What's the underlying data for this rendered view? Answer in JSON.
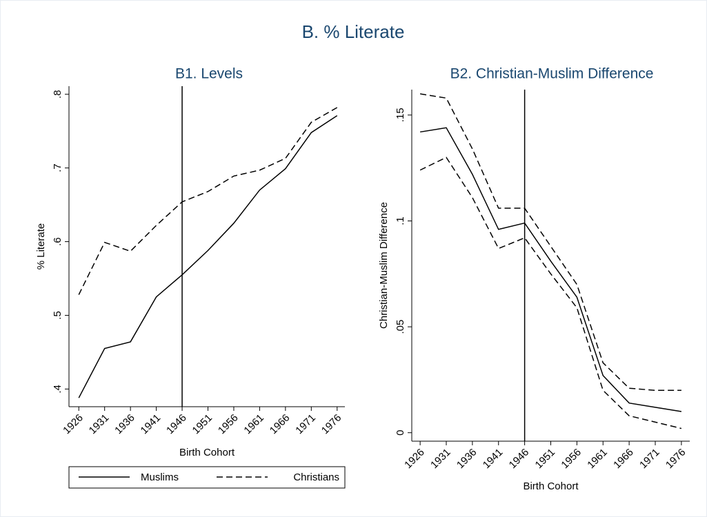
{
  "title": "B. % Literate",
  "chart_data": [
    {
      "type": "line",
      "title": "B1. Levels",
      "xlabel": "Birth Cohort",
      "ylabel": "% Literate",
      "x": [
        1926,
        1931,
        1936,
        1941,
        1946,
        1951,
        1956,
        1961,
        1966,
        1971,
        1976
      ],
      "series": [
        {
          "name": "Muslims",
          "color": "#000000",
          "dash": "solid",
          "values": [
            0.388,
            0.455,
            0.464,
            0.525,
            0.555,
            0.588,
            0.625,
            0.67,
            0.699,
            0.748,
            0.771
          ]
        },
        {
          "name": "Christians",
          "color": "#000000",
          "dash": "dashed",
          "values": [
            0.528,
            0.599,
            0.587,
            0.622,
            0.654,
            0.668,
            0.689,
            0.697,
            0.713,
            0.762,
            0.782
          ]
        }
      ],
      "xlim": [
        1924.1,
        1977.5
      ],
      "xticks": [
        1926,
        1931,
        1936,
        1941,
        1946,
        1951,
        1956,
        1961,
        1966,
        1971,
        1976
      ],
      "ylim": [
        0.376,
        0.811
      ],
      "yticks": [
        {
          "value": 0.4,
          "label": ".4"
        },
        {
          "value": 0.5,
          "label": ".5"
        },
        {
          "value": 0.6,
          "label": ".6"
        },
        {
          "value": 0.7,
          "label": ".7"
        },
        {
          "value": 0.8,
          "label": ".8"
        }
      ],
      "vline": 1946,
      "legend": "bottom",
      "grid": false
    },
    {
      "type": "line",
      "title": "B2. Christian-Muslim Difference",
      "xlabel": "Birth Cohort",
      "ylabel": "Christian-Muslim Difference",
      "x": [
        1926,
        1931,
        1936,
        1941,
        1946,
        1951,
        1956,
        1961,
        1966,
        1971,
        1976
      ],
      "series": [
        {
          "color": "#000000",
          "dash": "solid",
          "values": [
            0.142,
            0.144,
            0.122,
            0.096,
            0.099,
            0.081,
            0.064,
            0.027,
            0.014,
            0.012,
            0.01
          ]
        },
        {
          "color": "#000000",
          "dash": "dashed",
          "values": [
            0.16,
            0.158,
            0.134,
            0.106,
            0.106,
            0.088,
            0.07,
            0.033,
            0.021,
            0.02,
            0.02
          ]
        },
        {
          "color": "#000000",
          "dash": "dashed",
          "values": [
            0.124,
            0.13,
            0.111,
            0.087,
            0.092,
            0.075,
            0.059,
            0.02,
            0.008,
            0.005,
            0.002
          ]
        }
      ],
      "xlim": [
        1924.4,
        1977.6
      ],
      "xticks": [
        1926,
        1931,
        1936,
        1941,
        1946,
        1951,
        1956,
        1961,
        1966,
        1971,
        1976
      ],
      "ylim": [
        -0.004,
        0.162
      ],
      "yticks": [
        0,
        {
          "value": 0.05,
          "label": ".05"
        },
        {
          "value": 0.1,
          "label": ".1"
        },
        {
          "value": 0.15,
          "label": ".15"
        }
      ],
      "vline": 1946,
      "grid": false
    }
  ]
}
